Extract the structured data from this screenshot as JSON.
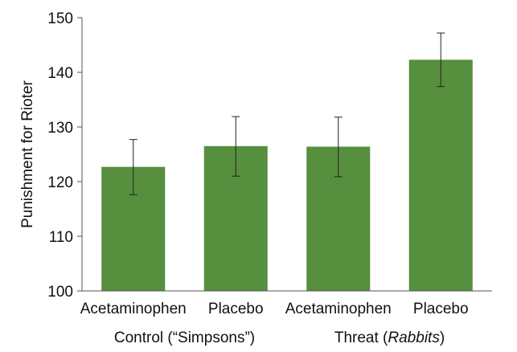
{
  "chart_data": {
    "type": "bar",
    "ylabel": "Punishment for Rioter",
    "ylim": [
      100,
      150
    ],
    "yticks": [
      100,
      110,
      120,
      130,
      140,
      150
    ],
    "grid": false,
    "bar_color": "#568f3e",
    "error_bar_color": "#222222",
    "categories": [
      "Acetaminophen",
      "Placebo",
      "Acetaminophen",
      "Placebo"
    ],
    "groups": [
      {
        "label_prefix": "Control (“Simpsons”)",
        "label_italic": "",
        "label_suffix": "",
        "categories": [
          0,
          1
        ]
      },
      {
        "label_prefix": "Threat (",
        "label_italic": "Rabbits",
        "label_suffix": ")",
        "categories": [
          2,
          3
        ]
      }
    ],
    "series": [
      {
        "values": [
          122.7,
          126.5,
          126.4,
          142.3
        ],
        "error_low": [
          117.6,
          121.0,
          120.9,
          137.4
        ],
        "error_high": [
          127.7,
          131.9,
          131.8,
          147.2
        ]
      }
    ]
  }
}
